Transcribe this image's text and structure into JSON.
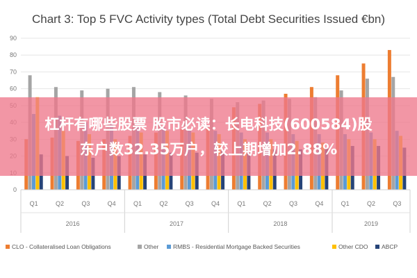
{
  "chart_data": {
    "type": "bar",
    "title": "Chart 3: Top 5 FVC Activity types (Total Debt Securities Issued €bn)",
    "categories": [
      "Q1",
      "Q2",
      "Q3",
      "Q4",
      "Q1",
      "Q2",
      "Q3",
      "Q4",
      "Q1",
      "Q2",
      "Q3",
      "Q4",
      "Q1",
      "Q2",
      "Q3"
    ],
    "years": [
      {
        "label": "2016",
        "quarters": 4
      },
      {
        "label": "2017",
        "quarters": 4
      },
      {
        "label": "2018",
        "quarters": 4
      },
      {
        "label": "2019",
        "quarters": 3
      }
    ],
    "ylim": [
      0,
      90
    ],
    "yticks": [
      0,
      10,
      20,
      30,
      40,
      50,
      60,
      70,
      80,
      90
    ],
    "grid": true,
    "legend_position": "bottom",
    "series": [
      {
        "name": "CLO - Collateralised Loan Obligations",
        "color": "#ed7d31",
        "values": [
          30,
          31,
          29,
          30,
          32,
          34,
          36,
          37,
          49,
          51,
          57,
          61,
          68,
          75,
          83
        ]
      },
      {
        "name": "Other",
        "color": "#a5a5a5",
        "values": [
          68,
          61,
          59,
          60,
          61,
          58,
          56,
          54,
          52,
          53,
          54,
          55,
          59,
          66,
          67
        ]
      },
      {
        "name": "RMBS - Residential Mortgage Backed Securities",
        "color": "#5b9bd5",
        "values": [
          45,
          44,
          40,
          39,
          38,
          37,
          36,
          35,
          34,
          34,
          33,
          33,
          33,
          34,
          35
        ]
      },
      {
        "name": "Other CDO",
        "color": "#ffc000",
        "values": [
          55,
          35,
          33,
          30,
          34,
          35,
          34,
          33,
          30,
          30,
          29,
          28,
          30,
          30,
          32
        ]
      },
      {
        "name": "ABCP",
        "color": "#264478",
        "values": [
          21,
          20,
          19,
          20,
          21,
          22,
          22,
          23,
          22,
          24,
          24,
          25,
          26,
          26,
          25
        ]
      }
    ]
  },
  "overlay": {
    "line1": "杠杆有哪些股票 股市必读：长电科技(600584)股",
    "line2": "东户数32.35万户，较上期增加2.88%"
  }
}
